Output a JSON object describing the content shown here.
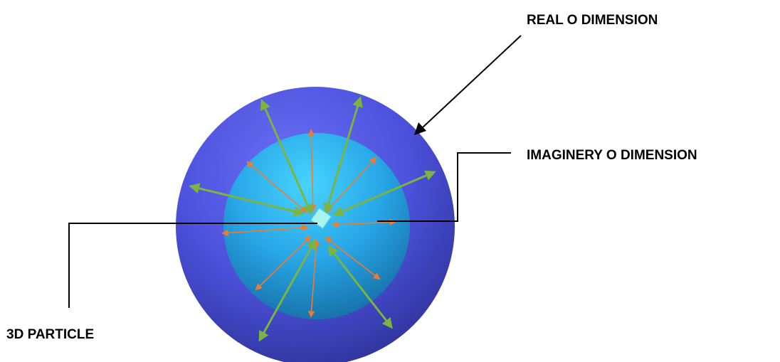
{
  "labels": {
    "real": "REAL O DIMENSION",
    "imaginary": "IMAGINERY O DIMENSION",
    "particle": "3D PARTICLE"
  },
  "colors": {
    "outer_sphere": "#4a4fd6",
    "inner_sphere": "#29a8e8",
    "particle": "#a8f4f0",
    "outward_arrows": "#7cb342",
    "inward_arrows": "#f07b2c",
    "leader_lines": "#000000"
  }
}
